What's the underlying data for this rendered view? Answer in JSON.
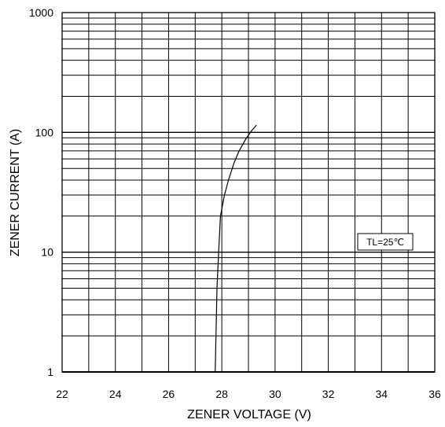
{
  "chart_data": {
    "type": "line",
    "xlabel": "ZENER VOLTAGE (V)",
    "ylabel": "ZENER CURRENT (A)",
    "xlim": [
      22,
      36
    ],
    "ylim": [
      1,
      1000
    ],
    "yscale": "log",
    "grid": true,
    "x_ticks": [
      "22",
      "24",
      "26",
      "28",
      "30",
      "32",
      "34",
      "36"
    ],
    "y_ticks": [
      "1",
      "10",
      "100",
      "1000"
    ],
    "annotation": "TL=25℃",
    "annotation_position": "right-middle",
    "series": [
      {
        "color": "#000000",
        "points": [
          [
            27.75,
            1
          ],
          [
            27.78,
            2
          ],
          [
            27.82,
            5
          ],
          [
            27.88,
            10
          ],
          [
            27.95,
            20
          ],
          [
            28.1,
            30
          ],
          [
            28.25,
            40
          ],
          [
            28.45,
            55
          ],
          [
            28.65,
            70
          ],
          [
            28.9,
            88
          ],
          [
            29.1,
            102
          ],
          [
            29.3,
            115
          ]
        ]
      }
    ]
  }
}
